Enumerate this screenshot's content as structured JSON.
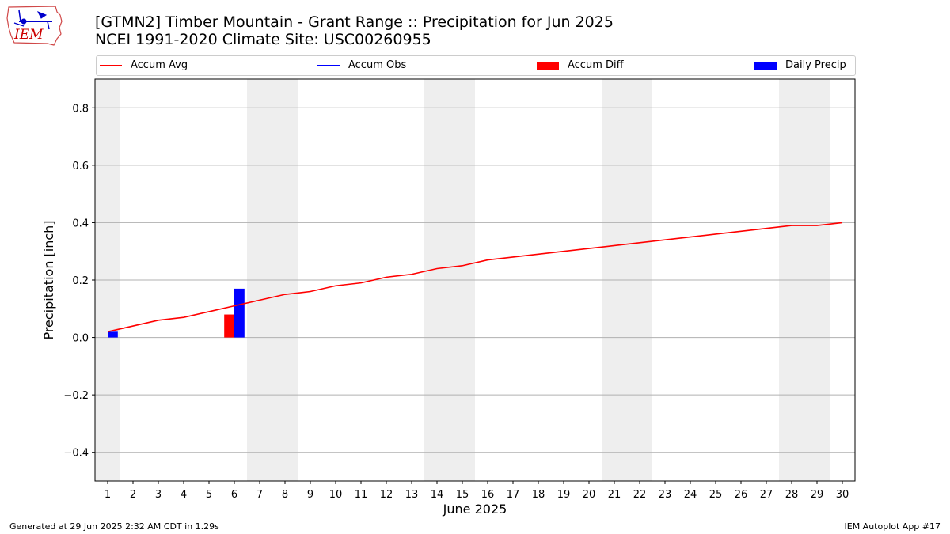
{
  "logo": {
    "text": "IEM"
  },
  "title": {
    "line1": "[GTMN2] Timber Mountain - Grant Range :: Precipitation for Jun 2025",
    "line2": "NCEI 1991-2020 Climate Site: USC00260955"
  },
  "legend": [
    {
      "label": "Accum Avg",
      "kind": "line",
      "color": "#ff0000"
    },
    {
      "label": "Accum Obs",
      "kind": "line",
      "color": "#0000ff"
    },
    {
      "label": "Accum Diff",
      "kind": "patch",
      "color": "#ff0000"
    },
    {
      "label": "Daily Precip",
      "kind": "patch",
      "color": "#0000ff"
    }
  ],
  "chart_data": {
    "type": "line",
    "xlabel": "June 2025",
    "ylabel": "Precipitation [inch]",
    "x": [
      1,
      2,
      3,
      4,
      5,
      6,
      7,
      8,
      9,
      10,
      11,
      12,
      13,
      14,
      15,
      16,
      17,
      18,
      19,
      20,
      21,
      22,
      23,
      24,
      25,
      26,
      27,
      28,
      29,
      30
    ],
    "xlim": [
      0.5,
      30.5
    ],
    "ylim": [
      -0.5,
      0.9
    ],
    "yticks": [
      -0.4,
      -0.2,
      0.0,
      0.2,
      0.4,
      0.6,
      0.8
    ],
    "ytick_labels": [
      "−0.4",
      "−0.2",
      "0.0",
      "0.2",
      "0.4",
      "0.6",
      "0.8"
    ],
    "grid": "y",
    "weekend_shading": [
      [
        0.5,
        1.5
      ],
      [
        6.5,
        8.5
      ],
      [
        13.5,
        15.5
      ],
      [
        20.5,
        22.5
      ],
      [
        27.5,
        29.5
      ]
    ],
    "series": [
      {
        "name": "Accum Avg",
        "kind": "line",
        "color": "#ff0000",
        "values": [
          0.02,
          0.04,
          0.06,
          0.07,
          0.09,
          0.11,
          0.13,
          0.15,
          0.16,
          0.18,
          0.19,
          0.21,
          0.22,
          0.24,
          0.25,
          0.27,
          0.28,
          0.29,
          0.3,
          0.31,
          0.32,
          0.33,
          0.34,
          0.35,
          0.36,
          0.37,
          0.38,
          0.39,
          0.39,
          0.4
        ]
      },
      {
        "name": "Accum Diff",
        "kind": "bar",
        "color": "#ff0000",
        "offset": -0.2,
        "points": [
          {
            "x": 6,
            "y": 0.08
          }
        ]
      },
      {
        "name": "Daily Precip",
        "kind": "bar",
        "color": "#0000ff",
        "offset": 0.2,
        "points": [
          {
            "x": 1,
            "y": 0.02
          },
          {
            "x": 6,
            "y": 0.17
          }
        ]
      }
    ]
  },
  "footer": {
    "left": "Generated at 29 Jun 2025 2:32 AM CDT in 1.29s",
    "right": "IEM Autoplot App #17"
  }
}
